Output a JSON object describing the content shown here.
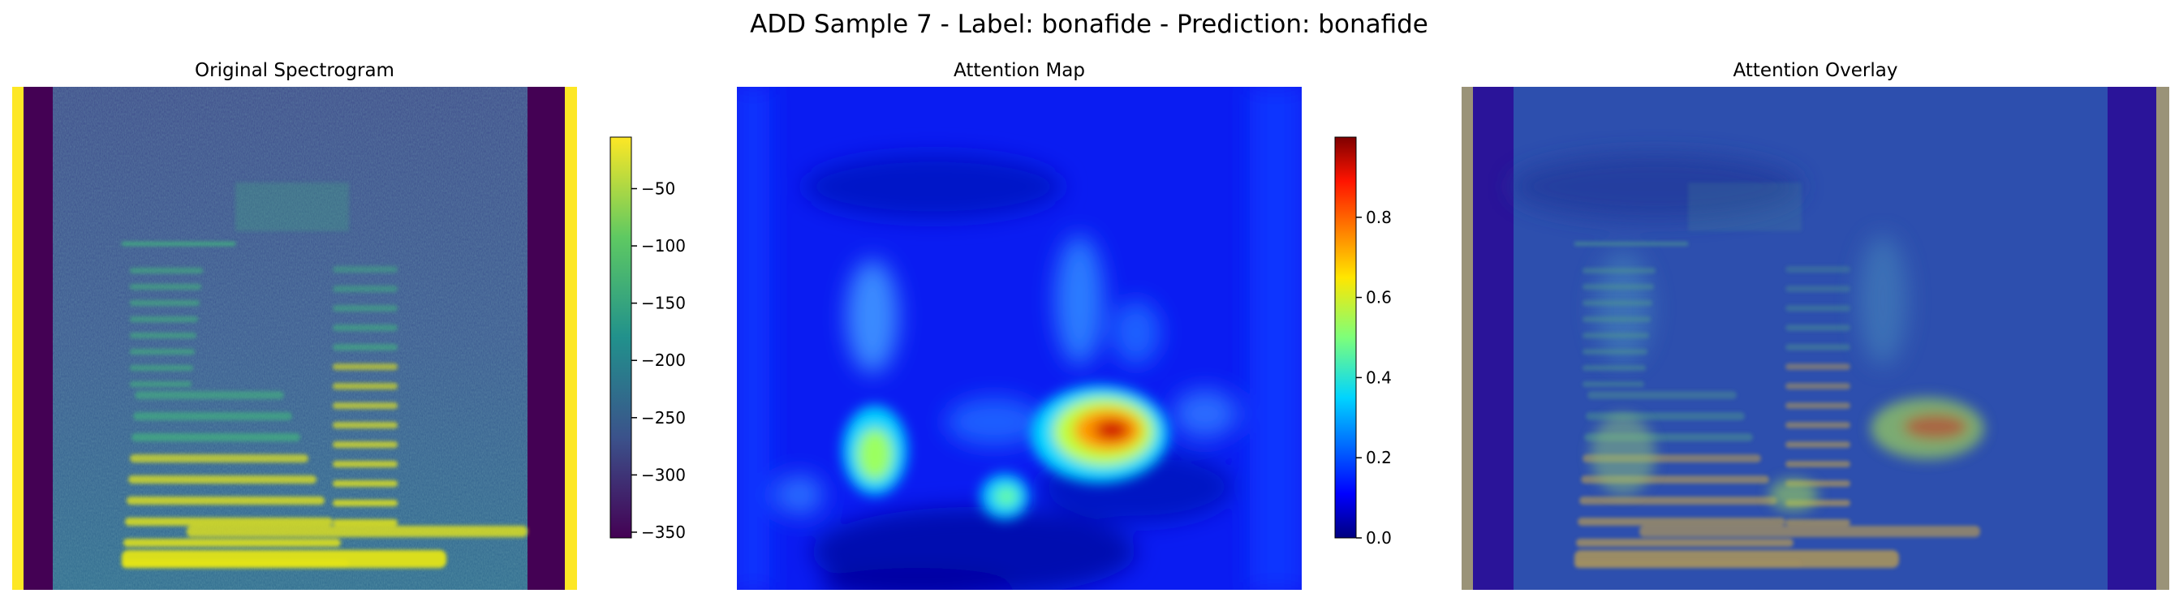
{
  "figure": {
    "title": "ADD Sample 7 - Label: bonafide - Prediction: bonafide"
  },
  "chart_data": [
    {
      "type": "heatmap",
      "title": "Original Spectrogram",
      "colormap": "viridis",
      "colorbar": {
        "range": [
          -355,
          -5
        ],
        "ticks": [
          -50,
          -100,
          -150,
          -200,
          -250,
          -300,
          -350
        ],
        "tick_labels": [
          "−50",
          "−100",
          "−150",
          "−200",
          "−250",
          "−300",
          "−350"
        ]
      },
      "axes_visible": false
    },
    {
      "type": "heatmap",
      "title": "Attention Map",
      "colormap": "jet",
      "colorbar": {
        "range": [
          0,
          1.0
        ],
        "ticks": [
          0.0,
          0.2,
          0.4,
          0.6,
          0.8
        ],
        "tick_labels": [
          "0.0",
          "0.2",
          "0.4",
          "0.6",
          "0.8"
        ]
      },
      "axes_visible": false
    },
    {
      "type": "heatmap",
      "title": "Attention Overlay",
      "description_of_blend": "spectrogram (viridis) blended with attention map (jet)",
      "axes_visible": false
    }
  ],
  "colors": {
    "viridis": [
      "#440154",
      "#3b528b",
      "#21918c",
      "#5ec962",
      "#fde725"
    ],
    "jet": [
      "#00007f",
      "#0000ff",
      "#00ffff",
      "#ffff00",
      "#ff0000",
      "#7f0000"
    ]
  }
}
